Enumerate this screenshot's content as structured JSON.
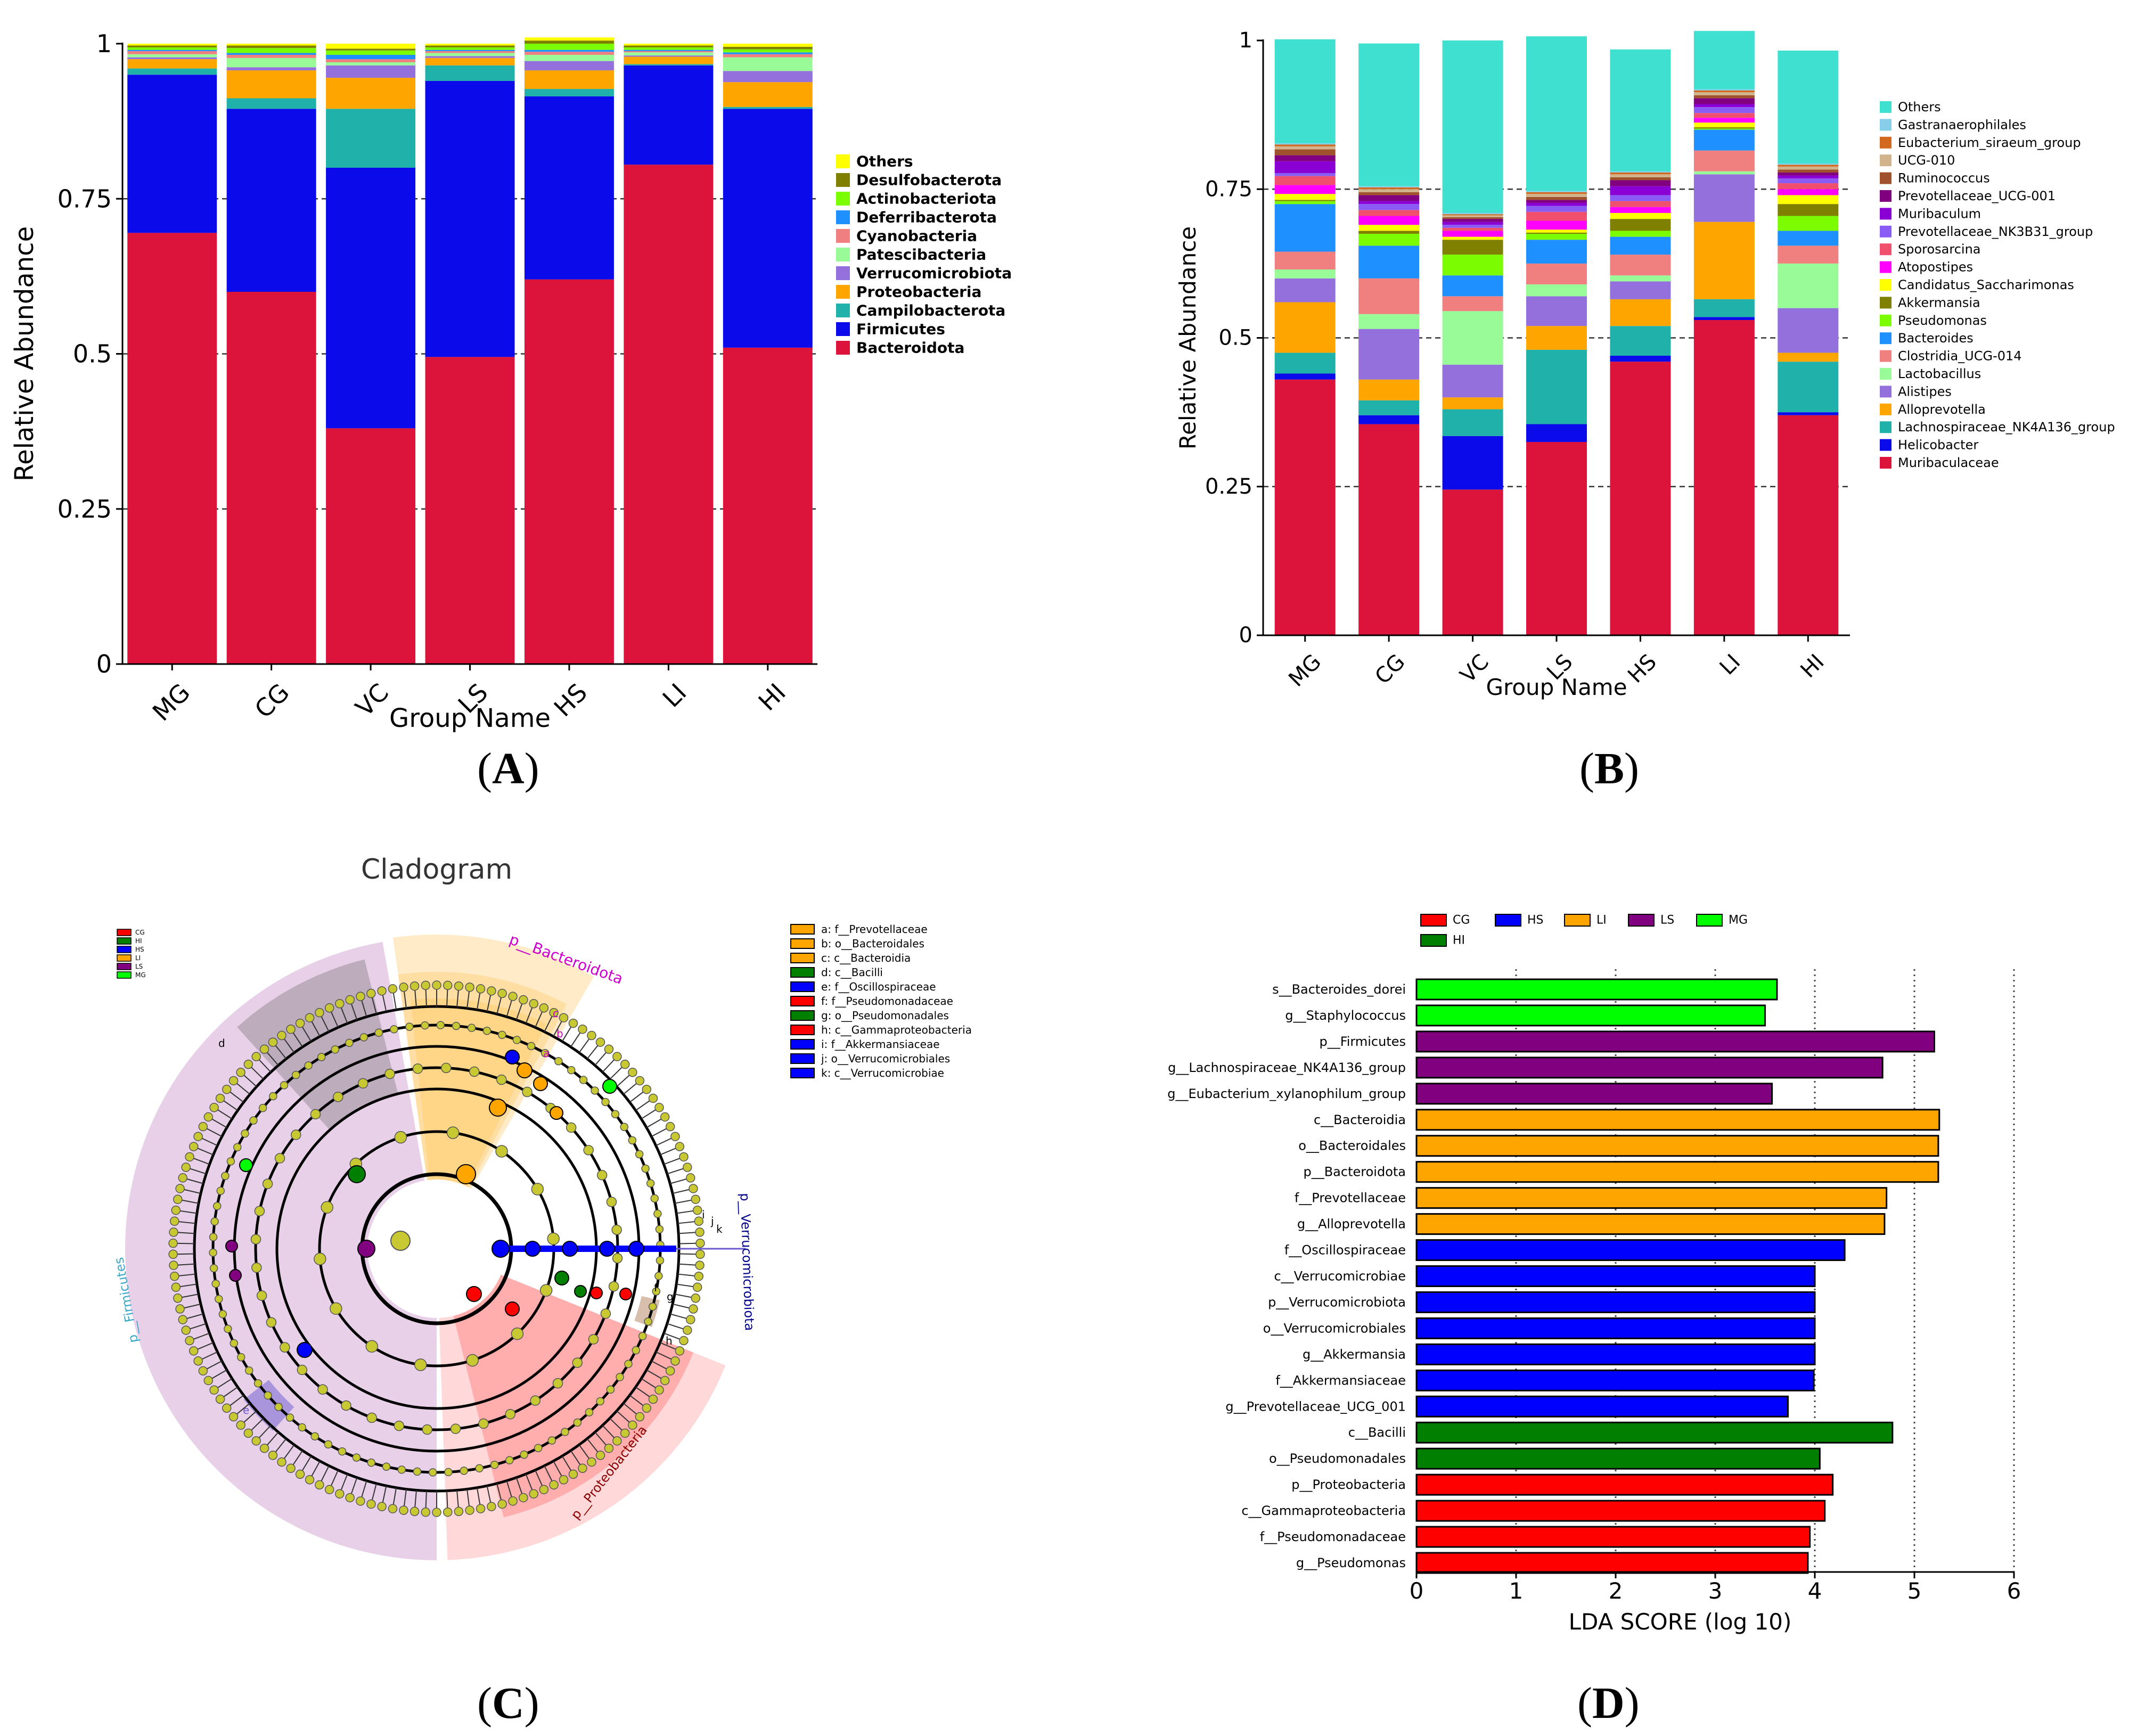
{
  "panel_labels": {
    "a": {
      "open": "(",
      "letter": "A",
      "close": ")"
    },
    "b": {
      "open": "(",
      "letter": "B",
      "close": ")"
    },
    "c": {
      "open": "(",
      "letter": "C",
      "close": ")"
    },
    "d": {
      "open": "(",
      "letter": "D",
      "close": ")"
    }
  },
  "chart_data": [
    {
      "id": "A",
      "type": "bar",
      "stacked": true,
      "title": "",
      "xlabel": "Group Name",
      "ylabel": "Relative Abundance",
      "ylim": [
        0,
        1
      ],
      "yticks": [
        0,
        0.25,
        0.5,
        0.75,
        1
      ],
      "ytick_labels": [
        "0",
        "0.25",
        "0.5",
        "0.75",
        "1"
      ],
      "grid": "dashed at 0.25, 0.5, 0.75",
      "legend_position": "right",
      "categories": [
        "MG",
        "CG",
        "VC",
        "LS",
        "HS",
        "LI",
        "HI"
      ],
      "series": [
        {
          "name": "Bacteroidota",
          "color": "#DC143C",
          "values": [
            0.695,
            0.6,
            0.38,
            0.495,
            0.62,
            0.805,
            0.51
          ]
        },
        {
          "name": "Firmicutes",
          "color": "#0A0AEB",
          "values": [
            0.255,
            0.295,
            0.42,
            0.445,
            0.295,
            0.16,
            0.385
          ]
        },
        {
          "name": "Campilobacterota",
          "color": "#20B2AA",
          "values": [
            0.01,
            0.017,
            0.095,
            0.025,
            0.012,
            0.002,
            0.003
          ]
        },
        {
          "name": "Proteobacteria",
          "color": "#FFA500",
          "values": [
            0.015,
            0.045,
            0.05,
            0.012,
            0.03,
            0.012,
            0.04
          ]
        },
        {
          "name": "Verrucomicrobiota",
          "color": "#9370DB",
          "values": [
            0.003,
            0.005,
            0.02,
            0.003,
            0.015,
            0.002,
            0.018
          ]
        },
        {
          "name": "Patescibacteria",
          "color": "#98FB98",
          "values": [
            0.005,
            0.015,
            0.005,
            0.005,
            0.01,
            0.005,
            0.022
          ]
        },
        {
          "name": "Cyanobacteria",
          "color": "#F08080",
          "values": [
            0.005,
            0.005,
            0.005,
            0.003,
            0.005,
            0.002,
            0.005
          ]
        },
        {
          "name": "Deferribacterota",
          "color": "#1E90FF",
          "values": [
            0.002,
            0.003,
            0.007,
            0.002,
            0.003,
            0.002,
            0.003
          ]
        },
        {
          "name": "Actinobacteriota",
          "color": "#7CFC00",
          "values": [
            0.004,
            0.008,
            0.007,
            0.004,
            0.01,
            0.004,
            0.005
          ]
        },
        {
          "name": "Desulfobacterota",
          "color": "#808000",
          "values": [
            0.003,
            0.004,
            0.003,
            0.003,
            0.005,
            0.003,
            0.004
          ]
        },
        {
          "name": "Others",
          "color": "#FFFF00",
          "values": [
            0.003,
            0.003,
            0.008,
            0.003,
            0.005,
            0.003,
            0.005
          ]
        }
      ],
      "legend_entries": [
        "Others",
        "Desulfobacterota",
        "Actinobacteriota",
        "Deferribacterota",
        "Cyanobacteria",
        "Patescibacteria",
        "Verrucomicrobiota",
        "Proteobacteria",
        "Campilobacterota",
        "Firmicutes",
        "Bacteroidota"
      ]
    },
    {
      "id": "B",
      "type": "bar",
      "stacked": true,
      "title": "",
      "xlabel": "Group Name",
      "ylabel": "Relative Abundance",
      "ylim": [
        0,
        1
      ],
      "yticks": [
        0,
        0.25,
        0.5,
        0.75,
        1
      ],
      "ytick_labels": [
        "0",
        "0.25",
        "0.5",
        "0.75",
        "1"
      ],
      "grid": "dashed at 0.25, 0.5, 0.75",
      "legend_position": "right",
      "categories": [
        "MG",
        "CG",
        "VC",
        "LS",
        "HS",
        "LI",
        "HI"
      ],
      "series": [
        {
          "name": "Muribaculaceae",
          "color": "#DC143C",
          "values": [
            0.43,
            0.355,
            0.245,
            0.325,
            0.46,
            0.53,
            0.37
          ]
        },
        {
          "name": "Helicobacter",
          "color": "#0A0AEB",
          "values": [
            0.01,
            0.015,
            0.09,
            0.03,
            0.01,
            0.005,
            0.005
          ]
        },
        {
          "name": "Lachnospiraceae_NK4A136_group",
          "color": "#20B2AA",
          "values": [
            0.035,
            0.025,
            0.045,
            0.125,
            0.05,
            0.03,
            0.085
          ]
        },
        {
          "name": "Alloprevotella",
          "color": "#FFA500",
          "values": [
            0.085,
            0.035,
            0.02,
            0.04,
            0.045,
            0.13,
            0.015
          ]
        },
        {
          "name": "Alistipes",
          "color": "#9370DB",
          "values": [
            0.04,
            0.085,
            0.055,
            0.05,
            0.03,
            0.08,
            0.075
          ]
        },
        {
          "name": "Lactobacillus",
          "color": "#98FB98",
          "values": [
            0.015,
            0.025,
            0.09,
            0.02,
            0.01,
            0.005,
            0.075
          ]
        },
        {
          "name": "Clostridia_UCG-014",
          "color": "#F08080",
          "values": [
            0.03,
            0.06,
            0.025,
            0.035,
            0.035,
            0.035,
            0.03
          ]
        },
        {
          "name": "Bacteroides",
          "color": "#1E90FF",
          "values": [
            0.08,
            0.055,
            0.035,
            0.04,
            0.03,
            0.035,
            0.025
          ]
        },
        {
          "name": "Pseudomonas",
          "color": "#7CFC00",
          "values": [
            0.005,
            0.02,
            0.035,
            0.01,
            0.01,
            0.002,
            0.025
          ]
        },
        {
          "name": "Akkermansia",
          "color": "#808000",
          "values": [
            0.002,
            0.005,
            0.025,
            0.002,
            0.02,
            0.002,
            0.02
          ]
        },
        {
          "name": "Candidatus_Saccharimonas",
          "color": "#FFFF00",
          "values": [
            0.01,
            0.01,
            0.005,
            0.005,
            0.01,
            0.008,
            0.015
          ]
        },
        {
          "name": "Atopostipes",
          "color": "#FF00FF",
          "values": [
            0.015,
            0.015,
            0.01,
            0.015,
            0.01,
            0.008,
            0.01
          ]
        },
        {
          "name": "Sporosarcina",
          "color": "#F0506E",
          "values": [
            0.015,
            0.01,
            0.005,
            0.015,
            0.01,
            0.008,
            0.01
          ]
        },
        {
          "name": "Prevotellaceae_NK3B31_group",
          "color": "#8A5CF5",
          "values": [
            0.005,
            0.01,
            0.005,
            0.01,
            0.01,
            0.01,
            0.008
          ]
        },
        {
          "name": "Muribaculum",
          "color": "#8A00D4",
          "values": [
            0.02,
            0.005,
            0.005,
            0.005,
            0.015,
            0.005,
            0.005
          ]
        },
        {
          "name": "Prevotellaceae_UCG-001",
          "color": "#800080",
          "values": [
            0.01,
            0.01,
            0.005,
            0.005,
            0.01,
            0.01,
            0.005
          ]
        },
        {
          "name": "Ruminococcus",
          "color": "#A0522D",
          "values": [
            0.01,
            0.005,
            0.003,
            0.005,
            0.005,
            0.005,
            0.005
          ]
        },
        {
          "name": "UCG-010",
          "color": "#D2B48C",
          "values": [
            0.005,
            0.005,
            0.003,
            0.005,
            0.005,
            0.005,
            0.005
          ]
        },
        {
          "name": "Eubacterium_siraeum_group",
          "color": "#D2691E",
          "values": [
            0.003,
            0.003,
            0.002,
            0.003,
            0.003,
            0.003,
            0.003
          ]
        },
        {
          "name": "Gastranaerophilales",
          "color": "#87CEEB",
          "values": [
            0.002,
            0.002,
            0.002,
            0.002,
            0.002,
            0.002,
            0.002
          ]
        },
        {
          "name": "Others",
          "color": "#40E0D0",
          "values": [
            0.175,
            0.24,
            0.29,
            0.26,
            0.205,
            0.098,
            0.19
          ]
        }
      ],
      "legend_entries": [
        "Others",
        "Gastranaerophilales",
        "Eubacterium_siraeum_group",
        "UCG-010",
        "Ruminococcus",
        "Prevotellaceae_UCG-001",
        "Muribaculum",
        "Prevotellaceae_NK3B31_group",
        "Sporosarcina",
        "Atopostipes",
        "Candidatus_Saccharimonas",
        "Akkermansia",
        "Pseudomonas",
        "Bacteroides",
        "Clostridia_UCG-014",
        "Lactobacillus",
        "Alistipes",
        "Alloprevotella",
        "Lachnospiraceae_NK4A136_group",
        "Helicobacter",
        "Muribaculaceae"
      ]
    },
    {
      "id": "C",
      "type": "cladogram",
      "title": "Cladogram",
      "group_legend": [
        {
          "name": "CG",
          "color": "#FF0000"
        },
        {
          "name": "HI",
          "color": "#007F00"
        },
        {
          "name": "HS",
          "color": "#0000FF"
        },
        {
          "name": "LI",
          "color": "#FFA500"
        },
        {
          "name": "LS",
          "color": "#800080"
        },
        {
          "name": "MG",
          "color": "#00FF00"
        }
      ],
      "taxa_legend": [
        {
          "label": "a: f__Prevotellaceae",
          "color": "#FFA500"
        },
        {
          "label": "b: o__Bacteroidales",
          "color": "#FFA500"
        },
        {
          "label": "c: c__Bacteroidia",
          "color": "#FFA500"
        },
        {
          "label": "d: c__Bacilli",
          "color": "#007F00"
        },
        {
          "label": "e: f__Oscillospiraceae",
          "color": "#0000FF"
        },
        {
          "label": "f: f__Pseudomonadaceae",
          "color": "#FF0000"
        },
        {
          "label": "g: o__Pseudomonadales",
          "color": "#007F00"
        },
        {
          "label": "h: c__Gammaproteobacteria",
          "color": "#FF0000"
        },
        {
          "label": "i: f__Akkermansiaceae",
          "color": "#0000FF"
        },
        {
          "label": "j: o__Verrucomicrobiales",
          "color": "#0000FF"
        },
        {
          "label": "k: c__Verrucomicrobiae",
          "color": "#0000FF"
        }
      ],
      "clade_labels": [
        "p__Bacteroidota",
        "p__Firmicutes",
        "p__Proteobacteria",
        "p__Verrucomicrobiota"
      ],
      "node_letters": [
        "a",
        "b",
        "c",
        "d",
        "e",
        "f",
        "g",
        "h",
        "i",
        "j",
        "k"
      ]
    },
    {
      "id": "D",
      "type": "bar",
      "orientation": "horizontal",
      "title": "",
      "xlabel": "LDA SCORE (log 10)",
      "ylabel": "",
      "xlim": [
        0,
        6
      ],
      "xticks": [
        0,
        1,
        2,
        3,
        4,
        5,
        6
      ],
      "xtick_labels": [
        "0",
        "1",
        "2",
        "3",
        "4",
        "5",
        "6"
      ],
      "grid": "dotted vertical",
      "legend_position": "top",
      "group_colors": {
        "CG": "#FF0000",
        "HS": "#0000FF",
        "LI": "#FFA500",
        "LS": "#800080",
        "MG": "#00FF00",
        "HI": "#007F00"
      },
      "legend_entries": [
        "CG",
        "HS",
        "LI",
        "LS",
        "MG",
        "HI"
      ],
      "bars": [
        {
          "label": "s__Bacteroides_dorei",
          "value": 3.62,
          "group": "MG"
        },
        {
          "label": "g__Staphylococcus",
          "value": 3.5,
          "group": "MG"
        },
        {
          "label": "p__Firmicutes",
          "value": 5.2,
          "group": "LS"
        },
        {
          "label": "g__Lachnospiraceae_NK4A136_group",
          "value": 4.68,
          "group": "LS"
        },
        {
          "label": "g__Eubacterium_xylanophilum_group",
          "value": 3.57,
          "group": "LS"
        },
        {
          "label": "c__Bacteroidia",
          "value": 5.25,
          "group": "LI"
        },
        {
          "label": "o__Bacteroidales",
          "value": 5.24,
          "group": "LI"
        },
        {
          "label": "p__Bacteroidota",
          "value": 5.24,
          "group": "LI"
        },
        {
          "label": "f__Prevotellaceae",
          "value": 4.72,
          "group": "LI"
        },
        {
          "label": "g__Alloprevotella",
          "value": 4.7,
          "group": "LI"
        },
        {
          "label": "f__Oscillospiraceae",
          "value": 4.3,
          "group": "HS"
        },
        {
          "label": "c__Verrucomicrobiae",
          "value": 4.0,
          "group": "HS"
        },
        {
          "label": "p__Verrucomicrobiota",
          "value": 4.0,
          "group": "HS"
        },
        {
          "label": "o__Verrucomicrobiales",
          "value": 4.0,
          "group": "HS"
        },
        {
          "label": "g__Akkermansia",
          "value": 4.0,
          "group": "HS"
        },
        {
          "label": "f__Akkermansiaceae",
          "value": 3.99,
          "group": "HS"
        },
        {
          "label": "g__Prevotellaceae_UCG_001",
          "value": 3.73,
          "group": "HS"
        },
        {
          "label": "c__Bacilli",
          "value": 4.78,
          "group": "HI"
        },
        {
          "label": "o__Pseudomonadales",
          "value": 4.05,
          "group": "HI"
        },
        {
          "label": "p__Proteobacteria",
          "value": 4.18,
          "group": "CG"
        },
        {
          "label": "c__Gammaproteobacteria",
          "value": 4.1,
          "group": "CG"
        },
        {
          "label": "f__Pseudomonadaceae",
          "value": 3.95,
          "group": "CG"
        },
        {
          "label": "g__Pseudomonas",
          "value": 3.93,
          "group": "CG"
        }
      ]
    }
  ]
}
